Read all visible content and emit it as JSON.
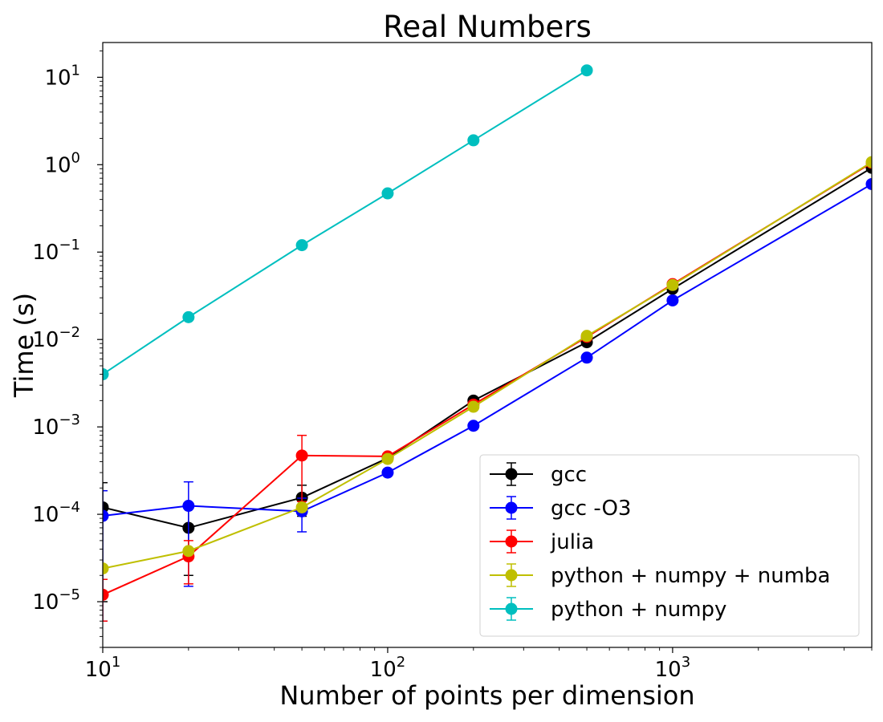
{
  "chart_data": {
    "type": "line",
    "title": "Real Numbers",
    "xlabel": "Number of points per dimension",
    "ylabel": "Time (s)",
    "xscale": "log",
    "yscale": "log",
    "xlim": [
      10,
      5000
    ],
    "ylim": [
      3e-06,
      25
    ],
    "grid": false,
    "legend_position": "lower right",
    "x_ticks": [
      {
        "base": "10",
        "exp": "1",
        "value": 10
      },
      {
        "base": "10",
        "exp": "2",
        "value": 100
      },
      {
        "base": "10",
        "exp": "3",
        "value": 1000
      }
    ],
    "y_ticks": [
      {
        "base": "10",
        "exp": "−5",
        "value": 1e-05
      },
      {
        "base": "10",
        "exp": "−4",
        "value": 0.0001
      },
      {
        "base": "10",
        "exp": "−3",
        "value": 0.001
      },
      {
        "base": "10",
        "exp": "−2",
        "value": 0.01
      },
      {
        "base": "10",
        "exp": "−1",
        "value": 0.1
      },
      {
        "base": "10",
        "exp": "0",
        "value": 1
      },
      {
        "base": "10",
        "exp": "1",
        "value": 10
      }
    ],
    "series": [
      {
        "name": "gcc",
        "color": "#000000",
        "x": [
          10,
          20,
          50,
          100,
          200,
          500,
          1000,
          5000
        ],
        "y": [
          0.00012,
          7e-05,
          0.000155,
          0.00044,
          0.002,
          0.0093,
          0.038,
          0.92
        ],
        "yerr": [
          0.00011,
          5e-05,
          6e-05,
          0,
          0,
          0,
          0,
          0
        ]
      },
      {
        "name": "gcc -O3",
        "color": "#0000ff",
        "x": [
          10,
          20,
          50,
          100,
          200,
          500,
          1000,
          5000
        ],
        "y": [
          9.6e-05,
          0.000125,
          0.000108,
          0.0003,
          0.00103,
          0.0062,
          0.028,
          0.6
        ],
        "yerr": [
          9e-05,
          0.00011,
          4.5e-05,
          0,
          0,
          0,
          0,
          0
        ]
      },
      {
        "name": "julia",
        "color": "#ff0000",
        "x": [
          10,
          20,
          50,
          100,
          200,
          500,
          1000,
          5000
        ],
        "y": [
          1.2e-05,
          3.3e-05,
          0.00047,
          0.00046,
          0.0018,
          0.0107,
          0.043,
          1.05
        ],
        "yerr": [
          6e-06,
          1.7e-05,
          0.00033,
          0,
          0,
          0,
          0,
          0
        ]
      },
      {
        "name": "python + numpy + numba",
        "color": "#bfbf00",
        "x": [
          10,
          20,
          50,
          100,
          200,
          500,
          1000,
          5000
        ],
        "y": [
          2.4e-05,
          3.8e-05,
          0.00012,
          0.00043,
          0.0017,
          0.011,
          0.042,
          1.07
        ],
        "yerr": [
          0,
          0,
          0,
          0,
          0,
          0,
          0,
          0
        ]
      },
      {
        "name": "python + numpy",
        "color": "#00bfbf",
        "x": [
          10,
          20,
          50,
          100,
          200,
          500
        ],
        "y": [
          0.004,
          0.018,
          0.12,
          0.47,
          1.9,
          12
        ],
        "yerr": [
          0,
          0,
          0,
          0,
          0,
          0
        ]
      }
    ]
  }
}
